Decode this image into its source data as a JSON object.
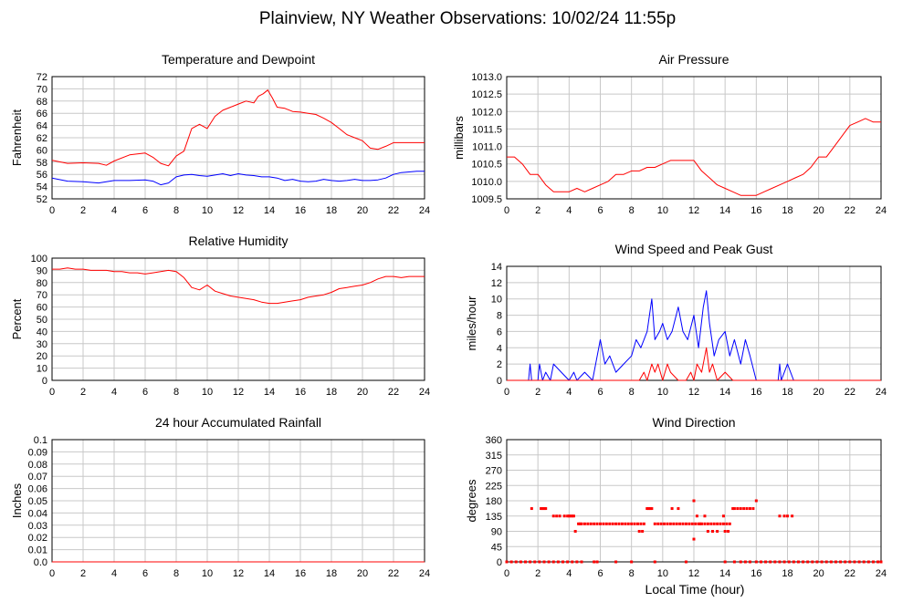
{
  "title": "Plainview, NY Weather Observations: 10/02/24 11:55p",
  "xlabel_shared": "Local Time (hour)",
  "colors": {
    "primary": "#ff0000",
    "secondary": "#0000ff",
    "grid": "#c8c8c8"
  },
  "chart_data": [
    {
      "id": "temp",
      "type": "line",
      "title": "Temperature and Dewpoint",
      "ylabel": "Fahrenheit",
      "xlim": [
        0,
        24
      ],
      "ylim": [
        52,
        72
      ],
      "xticks": [
        "0",
        "2",
        "4",
        "6",
        "8",
        "10",
        "12",
        "14",
        "16",
        "18",
        "20",
        "22",
        "24"
      ],
      "yticks": [
        "52",
        "54",
        "56",
        "58",
        "60",
        "62",
        "64",
        "66",
        "68",
        "70",
        "72"
      ],
      "series": [
        {
          "color": "#ff0000",
          "x": [
            0,
            1,
            2,
            3,
            3.5,
            4,
            5,
            6,
            6.5,
            7,
            7.5,
            8,
            8.5,
            9,
            9.5,
            10,
            10.5,
            11,
            11.5,
            12,
            12.5,
            13,
            13.3,
            13.6,
            13.9,
            14.2,
            14.5,
            15,
            15.5,
            16,
            16.5,
            17,
            17.5,
            18,
            18.5,
            19,
            19.5,
            20,
            20.5,
            21,
            21.5,
            22,
            22.5,
            23,
            24
          ],
          "y": [
            58.3,
            57.8,
            57.9,
            57.8,
            57.5,
            58.2,
            59.2,
            59.5,
            58.8,
            57.8,
            57.4,
            59.0,
            59.8,
            63.5,
            64.2,
            63.5,
            65.5,
            66.5,
            67.0,
            67.5,
            68.0,
            67.7,
            68.8,
            69.2,
            69.8,
            68.5,
            67.0,
            66.8,
            66.3,
            66.2,
            66.0,
            65.8,
            65.2,
            64.5,
            63.5,
            62.5,
            62.0,
            61.5,
            60.3,
            60.1,
            60.6,
            61.2,
            61.2,
            61.2,
            61.2
          ]
        },
        {
          "color": "#0000ff",
          "x": [
            0,
            1,
            2,
            3,
            4,
            5,
            6,
            6.5,
            7,
            7.5,
            8,
            8.5,
            9,
            9.5,
            10,
            10.5,
            11,
            11.5,
            12,
            12.5,
            13,
            13.5,
            14,
            14.5,
            15,
            15.5,
            16,
            16.5,
            17,
            17.5,
            18,
            18.5,
            19,
            19.5,
            20,
            20.5,
            21,
            21.5,
            22,
            22.5,
            23,
            23.5,
            24
          ],
          "y": [
            55.4,
            54.9,
            54.8,
            54.6,
            55.0,
            55.0,
            55.1,
            54.9,
            54.3,
            54.6,
            55.6,
            55.9,
            56.0,
            55.8,
            55.7,
            55.9,
            56.1,
            55.8,
            56.1,
            55.9,
            55.8,
            55.6,
            55.6,
            55.4,
            55.0,
            55.2,
            54.9,
            54.8,
            54.9,
            55.2,
            55.0,
            54.9,
            55.0,
            55.2,
            55.0,
            55.0,
            55.1,
            55.4,
            56.0,
            56.3,
            56.4,
            56.5,
            56.5
          ]
        }
      ]
    },
    {
      "id": "pressure",
      "type": "line",
      "title": "Air Pressure",
      "ylabel": "millibars",
      "xlim": [
        0,
        24
      ],
      "ylim": [
        1009.5,
        1013.0
      ],
      "xticks": [
        "0",
        "2",
        "4",
        "6",
        "8",
        "10",
        "12",
        "14",
        "16",
        "18",
        "20",
        "22",
        "24"
      ],
      "yticks": [
        "1009.5",
        "1010.0",
        "1010.5",
        "1011.0",
        "1011.5",
        "1012.0",
        "1012.5",
        "1013.0"
      ],
      "series": [
        {
          "color": "#ff0000",
          "x": [
            0,
            0.5,
            1,
            1.5,
            2,
            2.5,
            3,
            3.5,
            4,
            4.5,
            5,
            5.5,
            6,
            6.5,
            7,
            7.5,
            8,
            8.5,
            9,
            9.5,
            10,
            10.5,
            11,
            11.5,
            12,
            12.5,
            13,
            13.5,
            14,
            14.5,
            15,
            15.5,
            16,
            16.5,
            17,
            17.5,
            18,
            18.5,
            19,
            19.5,
            20,
            20.5,
            21,
            21.5,
            22,
            22.5,
            23,
            23.5,
            24
          ],
          "y": [
            1010.7,
            1010.7,
            1010.5,
            1010.2,
            1010.2,
            1009.9,
            1009.7,
            1009.7,
            1009.7,
            1009.8,
            1009.7,
            1009.8,
            1009.9,
            1010.0,
            1010.2,
            1010.2,
            1010.3,
            1010.3,
            1010.4,
            1010.4,
            1010.5,
            1010.6,
            1010.6,
            1010.6,
            1010.6,
            1010.3,
            1010.1,
            1009.9,
            1009.8,
            1009.7,
            1009.6,
            1009.6,
            1009.6,
            1009.7,
            1009.8,
            1009.9,
            1010.0,
            1010.1,
            1010.2,
            1010.4,
            1010.7,
            1010.7,
            1011.0,
            1011.3,
            1011.6,
            1011.7,
            1011.8,
            1011.7,
            1011.7
          ]
        }
      ]
    },
    {
      "id": "humidity",
      "type": "line",
      "title": "Relative Humidity",
      "ylabel": "Percent",
      "xlim": [
        0,
        24
      ],
      "ylim": [
        0,
        100
      ],
      "xticks": [
        "0",
        "2",
        "4",
        "6",
        "8",
        "10",
        "12",
        "14",
        "16",
        "18",
        "20",
        "22",
        "24"
      ],
      "yticks": [
        "0",
        "10",
        "20",
        "30",
        "40",
        "50",
        "60",
        "70",
        "80",
        "90",
        "100"
      ],
      "series": [
        {
          "color": "#ff0000",
          "x": [
            0,
            0.5,
            1,
            1.5,
            2,
            2.5,
            3,
            3.5,
            4,
            4.5,
            5,
            5.5,
            6,
            6.5,
            7,
            7.5,
            8,
            8.5,
            9,
            9.5,
            10,
            10.5,
            11,
            11.5,
            12,
            12.5,
            13,
            13.5,
            14,
            14.5,
            15,
            15.5,
            16,
            16.5,
            17,
            17.5,
            18,
            18.5,
            19,
            19.5,
            20,
            20.5,
            21,
            21.5,
            22,
            22.5,
            23,
            23.5,
            24
          ],
          "y": [
            91,
            91,
            92,
            91,
            91,
            90,
            90,
            90,
            89,
            89,
            88,
            88,
            87,
            88,
            89,
            90,
            89,
            84,
            76,
            74,
            78,
            73,
            71,
            69,
            68,
            67,
            66,
            64,
            63,
            63,
            64,
            65,
            66,
            68,
            69,
            70,
            72,
            75,
            76,
            77,
            78,
            80,
            83,
            85,
            85,
            84,
            85,
            85,
            85
          ]
        }
      ]
    },
    {
      "id": "wind",
      "type": "line",
      "title": "Wind Speed and Peak Gust",
      "ylabel": "miles/hour",
      "xlim": [
        0,
        24
      ],
      "ylim": [
        0,
        14
      ],
      "xticks": [
        "0",
        "2",
        "4",
        "6",
        "8",
        "10",
        "12",
        "14",
        "16",
        "18",
        "20",
        "22",
        "24"
      ],
      "yticks": [
        "0",
        "2",
        "4",
        "6",
        "8",
        "10",
        "12",
        "14"
      ],
      "series": [
        {
          "color": "#0000ff",
          "x": [
            0,
            1.4,
            1.5,
            1.6,
            2,
            2.1,
            2.3,
            2.5,
            2.8,
            3,
            3.5,
            4,
            4.3,
            4.5,
            5,
            5.5,
            6,
            6.3,
            6.6,
            7,
            7.5,
            8,
            8.3,
            8.6,
            9,
            9.3,
            9.5,
            9.8,
            10,
            10.3,
            10.6,
            11,
            11.3,
            11.6,
            12,
            12.3,
            12.6,
            12.8,
            13,
            13.3,
            13.6,
            14,
            14.3,
            14.6,
            15,
            15.3,
            15.6,
            16,
            16.2,
            17.4,
            17.5,
            17.6,
            17.8,
            18,
            18.2,
            18.4,
            24
          ],
          "y": [
            0,
            0,
            2,
            0,
            0,
            2,
            0,
            1,
            0,
            2,
            1,
            0,
            1,
            0,
            1,
            0,
            5,
            2,
            3,
            1,
            2,
            3,
            5,
            4,
            6,
            10,
            5,
            6,
            7,
            5,
            6,
            9,
            6,
            5,
            8,
            4,
            9,
            11,
            7,
            3,
            5,
            6,
            3,
            5,
            2,
            5,
            3,
            0,
            0,
            0,
            2,
            0,
            1,
            2,
            1,
            0,
            0
          ]
        },
        {
          "color": "#ff0000",
          "x": [
            0,
            8.5,
            8.8,
            9,
            9.3,
            9.5,
            9.7,
            10,
            10.3,
            10.5,
            11,
            11.5,
            11.8,
            12,
            12.2,
            12.5,
            12.8,
            13,
            13.2,
            13.5,
            14,
            14.5,
            15,
            24
          ],
          "y": [
            0,
            0,
            1,
            0,
            2,
            1,
            2,
            0,
            2,
            1,
            0,
            0,
            1,
            0,
            2,
            1,
            4,
            1,
            2,
            0,
            1,
            0,
            0,
            0
          ]
        }
      ]
    },
    {
      "id": "rain",
      "type": "line",
      "title": "24 hour Accumulated Rainfall",
      "ylabel": "Inches",
      "xlim": [
        0,
        24
      ],
      "ylim": [
        0,
        0.1
      ],
      "xticks": [
        "0",
        "2",
        "4",
        "6",
        "8",
        "10",
        "12",
        "14",
        "16",
        "18",
        "20",
        "22",
        "24"
      ],
      "yticks": [
        "0.0",
        "0.01",
        "0.02",
        "0.03",
        "0.04",
        "0.05",
        "0.06",
        "0.07",
        "0.08",
        "0.09",
        "0.1"
      ],
      "series": [
        {
          "color": "#ff0000",
          "x": [
            0,
            24
          ],
          "y": [
            0,
            0
          ]
        }
      ]
    },
    {
      "id": "direction",
      "type": "scatter",
      "title": "Wind Direction",
      "ylabel": "degrees",
      "xlabel": "Local Time (hour)",
      "xlim": [
        0,
        24
      ],
      "ylim": [
        0,
        360
      ],
      "xticks": [
        "0",
        "2",
        "4",
        "6",
        "8",
        "10",
        "12",
        "14",
        "16",
        "18",
        "20",
        "22",
        "24"
      ],
      "yticks": [
        "0",
        "45",
        "90",
        "135",
        "180",
        "225",
        "270",
        "315",
        "360"
      ],
      "series": [
        {
          "color": "#ff0000",
          "x": [
            1.6,
            2.2,
            2.3,
            2.4,
            2.5,
            3.0,
            3.2,
            3.4,
            3.7,
            3.9,
            4.0,
            4.1,
            4.2,
            4.3,
            4.6,
            4.7,
            4.8,
            5.0,
            5.2,
            5.4,
            5.6,
            5.8,
            6.0,
            6.2,
            6.4,
            6.6,
            6.8,
            7.0,
            7.2,
            7.4,
            7.6,
            7.8,
            8.0,
            8.2,
            8.4,
            8.6,
            8.8,
            9.0,
            9.1,
            9.2,
            9.3,
            9.5,
            9.7,
            9.9,
            10.1,
            10.3,
            10.5,
            10.7,
            10.9,
            11.1,
            11.3,
            11.5,
            11.7,
            11.9,
            12.0,
            12.1,
            12.3,
            12.5,
            12.7,
            12.9,
            13.1,
            13.3,
            13.5,
            13.7,
            13.9,
            14.1,
            14.3,
            14.5,
            14.6,
            14.8,
            15.0,
            15.2,
            15.4,
            15.6,
            15.8,
            16.0,
            17.5,
            17.8,
            18.0,
            18.3,
            4.4,
            8.5,
            8.7,
            10.6,
            11.0,
            12.0,
            12.2,
            12.9,
            13.2,
            13.5,
            14.0,
            14.2,
            13.9,
            12.4,
            12.7
          ],
          "y": [
            157,
            157,
            157,
            157,
            157,
            135,
            135,
            135,
            135,
            135,
            135,
            135,
            135,
            135,
            112,
            112,
            112,
            112,
            112,
            112,
            112,
            112,
            112,
            112,
            112,
            112,
            112,
            112,
            112,
            112,
            112,
            112,
            112,
            112,
            112,
            112,
            112,
            157,
            157,
            157,
            157,
            112,
            112,
            112,
            112,
            112,
            112,
            112,
            112,
            112,
            112,
            112,
            112,
            112,
            180,
            112,
            112,
            112,
            112,
            112,
            112,
            112,
            112,
            112,
            112,
            112,
            112,
            157,
            157,
            157,
            157,
            157,
            157,
            157,
            157,
            180,
            135,
            135,
            135,
            135,
            90,
            90,
            90,
            157,
            157,
            67,
            135,
            90,
            90,
            90,
            90,
            90,
            135,
            112,
            135
          ]
        },
        {
          "color": "#ff0000",
          "x": [
            0,
            0.3,
            0.6,
            0.9,
            1.2,
            1.5,
            1.8,
            2.1,
            2.4,
            2.7,
            3.0,
            3.3,
            3.6,
            3.9,
            4.2,
            4.5,
            4.8,
            5.6,
            5.8,
            7.0,
            8.0,
            9.5,
            11.5,
            14.0,
            14.6,
            15.0,
            15.3,
            15.6,
            16.0,
            16.3,
            16.6,
            16.9,
            17.2,
            17.5,
            17.8,
            18.1,
            18.4,
            18.7,
            19.0,
            19.3,
            19.6,
            19.9,
            20.2,
            20.5,
            20.8,
            21.1,
            21.4,
            21.7,
            22.0,
            22.3,
            22.6,
            22.9,
            23.2,
            23.5,
            23.8,
            24.0
          ],
          "y": [
            0,
            0,
            0,
            0,
            0,
            0,
            0,
            0,
            0,
            0,
            0,
            0,
            0,
            0,
            0,
            0,
            0,
            0,
            0,
            0,
            0,
            0,
            0,
            0,
            0,
            0,
            0,
            0,
            0,
            0,
            0,
            0,
            0,
            0,
            0,
            0,
            0,
            0,
            0,
            0,
            0,
            0,
            0,
            0,
            0,
            0,
            0,
            0,
            0,
            0,
            0,
            0,
            0,
            0,
            0,
            0
          ]
        }
      ]
    }
  ]
}
